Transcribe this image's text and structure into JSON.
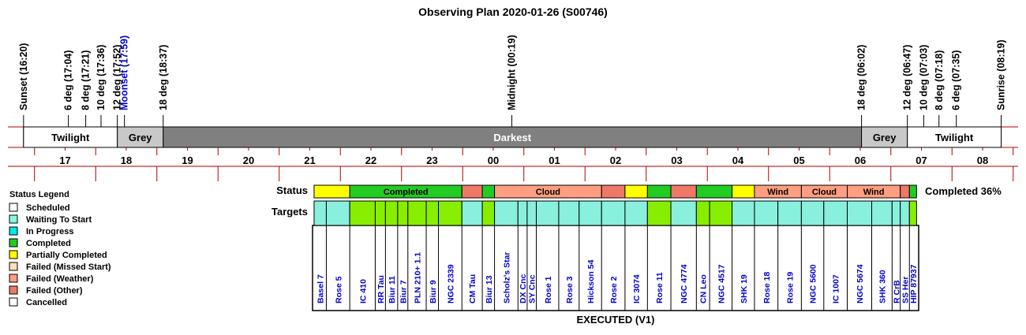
{
  "chart_data": {
    "type": "timeline",
    "title": "Observing Plan 2020-01-26 (S00746)",
    "events": [
      {
        "label": "Sunset (16:20)",
        "time": "16:20",
        "color": "#000000"
      },
      {
        "label": "6 deg (17:04)",
        "time": "17:04",
        "color": "#000000"
      },
      {
        "label": "8 deg (17:21)",
        "time": "17:21",
        "color": "#000000"
      },
      {
        "label": "10 deg (17:36)",
        "time": "17:36",
        "color": "#000000"
      },
      {
        "label": "12 deg (17:52)",
        "time": "17:52",
        "color": "#000000"
      },
      {
        "label": "Moonset (17:59)",
        "time": "17:59",
        "color": "#0000cc"
      },
      {
        "label": "18 deg (18:37)",
        "time": "18:37",
        "color": "#000000"
      },
      {
        "label": "Midnight (00:19)",
        "time": "00:19",
        "color": "#000000"
      },
      {
        "label": "18 deg (06:02)",
        "time": "06:02",
        "color": "#000000"
      },
      {
        "label": "12 deg (06:47)",
        "time": "06:47",
        "color": "#000000"
      },
      {
        "label": "10 deg (07:03)",
        "time": "07:03",
        "color": "#000000"
      },
      {
        "label": "8 deg (07:18)",
        "time": "07:18",
        "color": "#000000"
      },
      {
        "label": "6 deg (07:35)",
        "time": "07:35",
        "color": "#000000"
      },
      {
        "label": "Sunrise (08:19)",
        "time": "08:19",
        "color": "#000000"
      }
    ],
    "periods": [
      {
        "label": "Twilight",
        "start": "16:20",
        "end": "17:52",
        "color": "#ffffff",
        "text_color": "#000000"
      },
      {
        "label": "Grey",
        "start": "17:52",
        "end": "18:37",
        "color": "#c8c8c8",
        "text_color": "#000000"
      },
      {
        "label": "Darkest",
        "start": "18:37",
        "end": "06:02",
        "color": "#808080",
        "text_color": "#ffffff"
      },
      {
        "label": "Grey",
        "start": "06:02",
        "end": "06:47",
        "color": "#c8c8c8",
        "text_color": "#000000"
      },
      {
        "label": "Twilight",
        "start": "06:47",
        "end": "08:19",
        "color": "#ffffff",
        "text_color": "#000000"
      }
    ],
    "hour_ticks": [
      "17",
      "18",
      "19",
      "20",
      "21",
      "22",
      "23",
      "00",
      "01",
      "02",
      "03",
      "04",
      "05",
      "06",
      "07",
      "08"
    ],
    "status_row_label": "Status",
    "targets_row_label": "Targets",
    "status_segments": [
      {
        "label": "",
        "start": "21:05",
        "end": "21:40",
        "status": "Partially Completed"
      },
      {
        "label": "Completed",
        "start": "21:40",
        "end": "23:30",
        "status": "Completed"
      },
      {
        "label": "",
        "start": "23:30",
        "end": "23:50",
        "status": "Failed (Other)"
      },
      {
        "label": "",
        "start": "23:50",
        "end": "00:02",
        "status": "Completed"
      },
      {
        "label": "Cloud",
        "start": "00:02",
        "end": "01:47",
        "status": "Failed (Weather)"
      },
      {
        "label": "",
        "start": "01:47",
        "end": "02:10",
        "status": "Failed (Other)"
      },
      {
        "label": "",
        "start": "02:10",
        "end": "02:32",
        "status": "Partially Completed"
      },
      {
        "label": "",
        "start": "02:32",
        "end": "02:55",
        "status": "Completed"
      },
      {
        "label": "",
        "start": "02:55",
        "end": "03:20",
        "status": "Failed (Other)"
      },
      {
        "label": "",
        "start": "03:20",
        "end": "03:55",
        "status": "Completed"
      },
      {
        "label": "",
        "start": "03:55",
        "end": "04:17",
        "status": "Partially Completed"
      },
      {
        "label": "Wind",
        "start": "04:17",
        "end": "05:03",
        "status": "Failed (Weather)"
      },
      {
        "label": "Cloud",
        "start": "05:03",
        "end": "05:48",
        "status": "Failed (Weather)"
      },
      {
        "label": "Wind",
        "start": "05:48",
        "end": "06:40",
        "status": "Failed (Weather)"
      },
      {
        "label": "",
        "start": "06:40",
        "end": "06:49",
        "status": "Failed (Other)"
      },
      {
        "label": "",
        "start": "06:49",
        "end": "06:56",
        "status": "Completed"
      }
    ],
    "completion_label": "Completed 36%",
    "targets": [
      {
        "name": "Basel 7",
        "start": "21:05",
        "end": "21:17",
        "status": "Partially Completed"
      },
      {
        "name": "Rose 5",
        "start": "21:17",
        "end": "21:40",
        "status": "Partially Completed"
      },
      {
        "name": "IC 410",
        "start": "21:40",
        "end": "22:05",
        "status": "Completed"
      },
      {
        "name": "RR Tau",
        "start": "22:05",
        "end": "22:15",
        "status": "Completed"
      },
      {
        "name": "Biur 11",
        "start": "22:15",
        "end": "22:27",
        "status": "Completed"
      },
      {
        "name": "Biur 7",
        "start": "22:27",
        "end": "22:37",
        "status": "Completed"
      },
      {
        "name": "PLN 210+ 1.1",
        "start": "22:37",
        "end": "22:55",
        "status": "Completed"
      },
      {
        "name": "Biur 9",
        "start": "22:55",
        "end": "23:07",
        "status": "Completed"
      },
      {
        "name": "NGC 2339",
        "start": "23:07",
        "end": "23:30",
        "status": "Completed"
      },
      {
        "name": "CM Tau",
        "start": "23:30",
        "end": "23:50",
        "status": "Failed (Other)"
      },
      {
        "name": "Biur 13",
        "start": "23:50",
        "end": "00:02",
        "status": "Completed"
      },
      {
        "name": "Scholz's Star",
        "start": "00:02",
        "end": "00:25",
        "status": "Failed (Weather)"
      },
      {
        "name": "DX Cnc",
        "start": "00:25",
        "end": "00:34",
        "status": "Failed (Weather)"
      },
      {
        "name": "SY Cnc",
        "start": "00:34",
        "end": "00:43",
        "status": "Failed (Weather)"
      },
      {
        "name": "Rose 1",
        "start": "00:43",
        "end": "01:05",
        "status": "Failed (Weather)"
      },
      {
        "name": "Rose 3",
        "start": "01:05",
        "end": "01:25",
        "status": "Failed (Weather)"
      },
      {
        "name": "Hickson 54",
        "start": "01:25",
        "end": "01:47",
        "status": "Failed (Weather)"
      },
      {
        "name": "Rose 2",
        "start": "01:47",
        "end": "02:10",
        "status": "Failed (Other)"
      },
      {
        "name": "IC 3074",
        "start": "02:10",
        "end": "02:32",
        "status": "Partially Completed"
      },
      {
        "name": "Rose 11",
        "start": "02:32",
        "end": "02:55",
        "status": "Completed"
      },
      {
        "name": "NGC 4774",
        "start": "02:55",
        "end": "03:20",
        "status": "Failed (Other)"
      },
      {
        "name": "CN Leo",
        "start": "03:20",
        "end": "03:33",
        "status": "Completed"
      },
      {
        "name": "NGC 4517",
        "start": "03:33",
        "end": "03:55",
        "status": "Completed"
      },
      {
        "name": "SHK 19",
        "start": "03:55",
        "end": "04:17",
        "status": "Partially Completed"
      },
      {
        "name": "Rose 18",
        "start": "04:17",
        "end": "04:40",
        "status": "Failed (Weather)"
      },
      {
        "name": "Rose 19",
        "start": "04:40",
        "end": "05:03",
        "status": "Failed (Weather)"
      },
      {
        "name": "NGC 5600",
        "start": "05:03",
        "end": "05:25",
        "status": "Failed (Weather)"
      },
      {
        "name": "IC 1007",
        "start": "05:25",
        "end": "05:48",
        "status": "Failed (Weather)"
      },
      {
        "name": "NGC 5674",
        "start": "05:48",
        "end": "06:12",
        "status": "Failed (Weather)"
      },
      {
        "name": "SHK 360",
        "start": "06:12",
        "end": "06:32",
        "status": "Failed (Weather)"
      },
      {
        "name": "R CrB",
        "start": "06:32",
        "end": "06:40",
        "status": "Failed (Weather)"
      },
      {
        "name": "SS Her",
        "start": "06:40",
        "end": "06:49",
        "status": "Failed (Other)"
      },
      {
        "name": "HIP 87937",
        "start": "06:49",
        "end": "06:56",
        "status": "Completed"
      }
    ],
    "footer": "EXECUTED (V1)",
    "legend": {
      "title": "Status Legend",
      "entries": [
        {
          "label": "Scheduled",
          "color": "#ffffff"
        },
        {
          "label": "Waiting To Start",
          "color": "#80ffe0"
        },
        {
          "label": "In Progress",
          "color": "#00e8e8"
        },
        {
          "label": "Completed",
          "color": "#22cc22"
        },
        {
          "label": "Partially Completed",
          "color": "#ffff00"
        },
        {
          "label": "Failed (Missed Start)",
          "color": "#ffe0b8"
        },
        {
          "label": "Failed (Weather)",
          "color": "#ff9e80"
        },
        {
          "label": "Failed (Other)",
          "color": "#f07868"
        },
        {
          "label": "Cancelled",
          "color": "#ffffff"
        }
      ]
    },
    "colors": {
      "target_completed": "#88ee00",
      "target_other": "#88f0dc",
      "target_label": "#0000cc",
      "rule": "#b00000"
    }
  }
}
